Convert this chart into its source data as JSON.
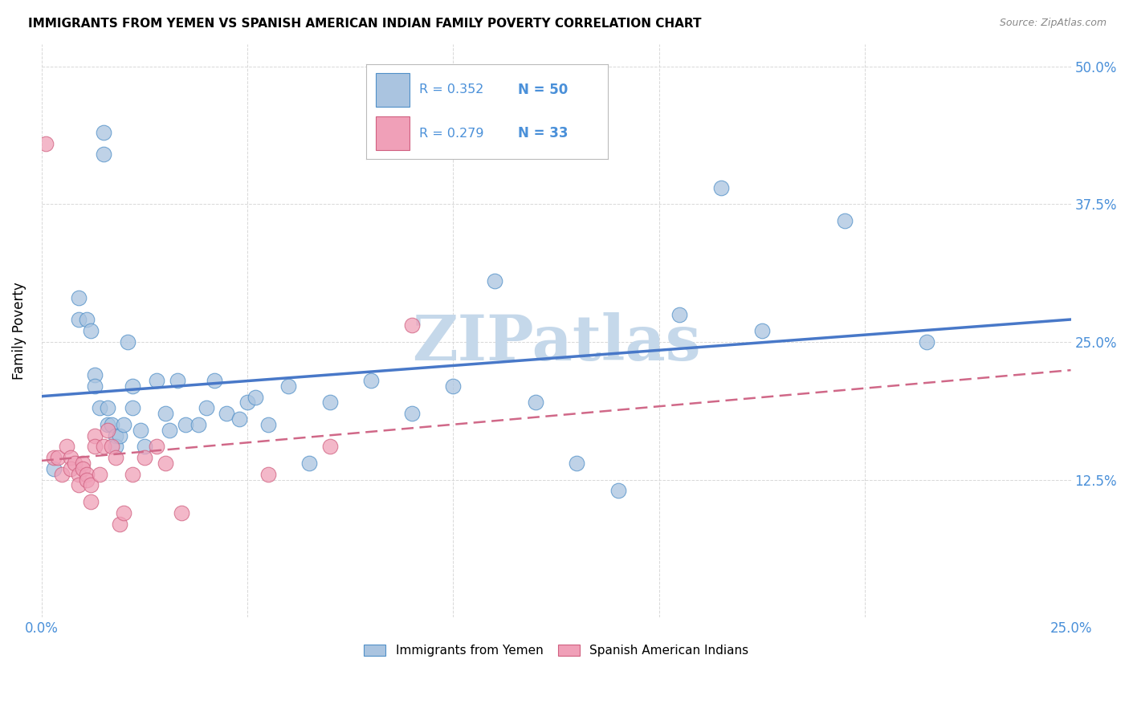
{
  "title": "IMMIGRANTS FROM YEMEN VS SPANISH AMERICAN INDIAN FAMILY POVERTY CORRELATION CHART",
  "source": "Source: ZipAtlas.com",
  "ylabel": "Family Poverty",
  "ytick_labels": [
    "50.0%",
    "37.5%",
    "25.0%",
    "12.5%"
  ],
  "ytick_values": [
    0.5,
    0.375,
    0.25,
    0.125
  ],
  "xlim": [
    0.0,
    0.25
  ],
  "ylim": [
    0.0,
    0.52
  ],
  "legend1_r": "R = 0.352",
  "legend1_n": "N = 50",
  "legend2_r": "R = 0.279",
  "legend2_n": "N = 33",
  "blue_fill": "#aac4e0",
  "blue_edge": "#5090c8",
  "pink_fill": "#f0a0b8",
  "pink_edge": "#d06080",
  "blue_line": "#4878c8",
  "pink_line": "#d06888",
  "watermark": "ZIPatlas",
  "watermark_color": "#c5d8ea",
  "grid_color": "#d8d8d8",
  "blue_scatter_x": [
    0.003,
    0.009,
    0.009,
    0.011,
    0.012,
    0.013,
    0.013,
    0.014,
    0.015,
    0.015,
    0.016,
    0.016,
    0.017,
    0.018,
    0.018,
    0.019,
    0.02,
    0.021,
    0.022,
    0.022,
    0.024,
    0.025,
    0.028,
    0.03,
    0.031,
    0.033,
    0.035,
    0.038,
    0.04,
    0.042,
    0.045,
    0.048,
    0.05,
    0.052,
    0.055,
    0.06,
    0.065,
    0.07,
    0.08,
    0.09,
    0.1,
    0.11,
    0.12,
    0.13,
    0.14,
    0.155,
    0.165,
    0.175,
    0.195,
    0.215
  ],
  "blue_scatter_y": [
    0.135,
    0.29,
    0.27,
    0.27,
    0.26,
    0.22,
    0.21,
    0.19,
    0.44,
    0.42,
    0.19,
    0.175,
    0.175,
    0.165,
    0.155,
    0.165,
    0.175,
    0.25,
    0.21,
    0.19,
    0.17,
    0.155,
    0.215,
    0.185,
    0.17,
    0.215,
    0.175,
    0.175,
    0.19,
    0.215,
    0.185,
    0.18,
    0.195,
    0.2,
    0.175,
    0.21,
    0.14,
    0.195,
    0.215,
    0.185,
    0.21,
    0.305,
    0.195,
    0.14,
    0.115,
    0.275,
    0.39,
    0.26,
    0.36,
    0.25
  ],
  "pink_scatter_x": [
    0.001,
    0.003,
    0.004,
    0.005,
    0.006,
    0.007,
    0.007,
    0.008,
    0.009,
    0.009,
    0.01,
    0.01,
    0.011,
    0.011,
    0.012,
    0.012,
    0.013,
    0.013,
    0.014,
    0.015,
    0.016,
    0.017,
    0.018,
    0.019,
    0.02,
    0.022,
    0.025,
    0.028,
    0.03,
    0.034,
    0.055,
    0.07,
    0.09
  ],
  "pink_scatter_y": [
    0.43,
    0.145,
    0.145,
    0.13,
    0.155,
    0.145,
    0.135,
    0.14,
    0.13,
    0.12,
    0.14,
    0.135,
    0.13,
    0.125,
    0.12,
    0.105,
    0.165,
    0.155,
    0.13,
    0.155,
    0.17,
    0.155,
    0.145,
    0.085,
    0.095,
    0.13,
    0.145,
    0.155,
    0.14,
    0.095,
    0.13,
    0.155,
    0.265
  ]
}
